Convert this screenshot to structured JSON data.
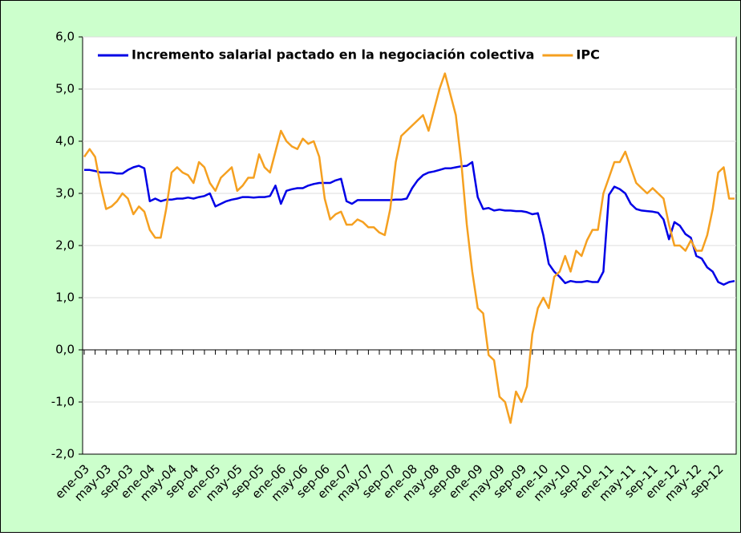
{
  "chart_data": {
    "type": "line",
    "categories": [
      "ene-03",
      null,
      null,
      null,
      "may-03",
      null,
      null,
      null,
      "sep-03",
      null,
      null,
      null,
      "ene-04",
      null,
      null,
      null,
      "may-04",
      null,
      null,
      null,
      "sep-04",
      null,
      null,
      null,
      "ene-05",
      null,
      null,
      null,
      "may-05",
      null,
      null,
      null,
      "sep-05",
      null,
      null,
      null,
      "ene-06",
      null,
      null,
      null,
      "may-06",
      null,
      null,
      null,
      "sep-06",
      null,
      null,
      null,
      "ene-07",
      null,
      null,
      null,
      "may-07",
      null,
      null,
      null,
      "sep-07",
      null,
      null,
      null,
      "ene-08",
      null,
      null,
      null,
      "may-08",
      null,
      null,
      null,
      "sep-08",
      null,
      null,
      null,
      "ene-09",
      null,
      null,
      null,
      "may-09",
      null,
      null,
      null,
      "sep-09",
      null,
      null,
      null,
      "ene-10",
      null,
      null,
      null,
      "may-10",
      null,
      null,
      null,
      "sep-10",
      null,
      null,
      null,
      "ene-11",
      null,
      null,
      null,
      "may-11",
      null,
      null,
      null,
      "sep-11",
      null,
      null,
      null,
      "ene-12",
      null,
      null,
      null,
      "may-12",
      null,
      null,
      null,
      "sep-12",
      null,
      null,
      null
    ],
    "series": [
      {
        "name": "Incremento salarial pactado en la negociación colectiva",
        "color": "#0000e6",
        "values": [
          3.45,
          3.45,
          3.43,
          3.4,
          3.4,
          3.4,
          3.38,
          3.38,
          3.45,
          3.5,
          3.53,
          3.48,
          2.85,
          2.9,
          2.85,
          2.88,
          2.88,
          2.9,
          2.9,
          2.92,
          2.9,
          2.93,
          2.95,
          3.0,
          2.75,
          2.8,
          2.85,
          2.88,
          2.9,
          2.93,
          2.93,
          2.92,
          2.93,
          2.93,
          2.95,
          3.15,
          2.8,
          3.05,
          3.08,
          3.1,
          3.1,
          3.15,
          3.18,
          3.2,
          3.2,
          3.2,
          3.25,
          3.28,
          2.85,
          2.8,
          2.87,
          2.87,
          2.87,
          2.87,
          2.87,
          2.87,
          2.87,
          2.88,
          2.88,
          2.9,
          3.1,
          3.25,
          3.35,
          3.4,
          3.42,
          3.45,
          3.48,
          3.48,
          3.5,
          3.52,
          3.53,
          3.6,
          2.93,
          2.7,
          2.72,
          2.67,
          2.69,
          2.67,
          2.67,
          2.66,
          2.66,
          2.64,
          2.6,
          2.62,
          2.2,
          1.65,
          1.5,
          1.4,
          1.28,
          1.32,
          1.3,
          1.3,
          1.32,
          1.3,
          1.3,
          1.5,
          2.97,
          3.13,
          3.08,
          3.0,
          2.8,
          2.7,
          2.67,
          2.66,
          2.65,
          2.63,
          2.5,
          2.12,
          2.45,
          2.38,
          2.22,
          2.15,
          1.8,
          1.75,
          1.58,
          1.5,
          1.3,
          1.25,
          1.3,
          1.32
        ]
      },
      {
        "name": "IPC",
        "color": "#f5a020",
        "values": [
          3.7,
          3.85,
          3.7,
          3.15,
          2.7,
          2.75,
          2.85,
          3.0,
          2.9,
          2.6,
          2.75,
          2.65,
          2.3,
          2.15,
          2.15,
          2.7,
          3.4,
          3.5,
          3.4,
          3.35,
          3.2,
          3.6,
          3.5,
          3.2,
          3.05,
          3.3,
          3.4,
          3.5,
          3.05,
          3.15,
          3.3,
          3.3,
          3.75,
          3.5,
          3.4,
          3.8,
          4.2,
          4.0,
          3.9,
          3.85,
          4.05,
          3.95,
          4.0,
          3.7,
          2.9,
          2.5,
          2.6,
          2.65,
          2.4,
          2.4,
          2.5,
          2.45,
          2.35,
          2.35,
          2.25,
          2.2,
          2.7,
          3.6,
          4.1,
          4.2,
          4.3,
          4.4,
          4.5,
          4.2,
          4.6,
          5.0,
          5.3,
          4.9,
          4.5,
          3.6,
          2.4,
          1.5,
          0.8,
          0.7,
          -0.1,
          -0.2,
          -0.9,
          -1.0,
          -1.4,
          -0.8,
          -1.0,
          -0.7,
          0.3,
          0.8,
          1.0,
          0.8,
          1.4,
          1.5,
          1.8,
          1.5,
          1.9,
          1.8,
          2.1,
          2.3,
          2.3,
          3.0,
          3.3,
          3.6,
          3.6,
          3.8,
          3.5,
          3.2,
          3.1,
          3.0,
          3.1,
          3.0,
          2.9,
          2.4,
          2.0,
          2.0,
          1.9,
          2.1,
          1.9,
          1.9,
          2.2,
          2.7,
          3.4,
          3.5,
          2.9,
          2.9
        ]
      }
    ],
    "ylim": [
      -2,
      6
    ],
    "yticks": [
      {
        "value": -2,
        "label": "-2,0"
      },
      {
        "value": -1,
        "label": "-1,0"
      },
      {
        "value": 0,
        "label": "0,0"
      },
      {
        "value": 1,
        "label": "1,0"
      },
      {
        "value": 2,
        "label": "2,0"
      },
      {
        "value": 3,
        "label": "3,0"
      },
      {
        "value": 4,
        "label": "4,0"
      },
      {
        "value": 5,
        "label": "5,0"
      },
      {
        "value": 6,
        "label": "6,0"
      }
    ],
    "grid": true,
    "legend": "top"
  }
}
